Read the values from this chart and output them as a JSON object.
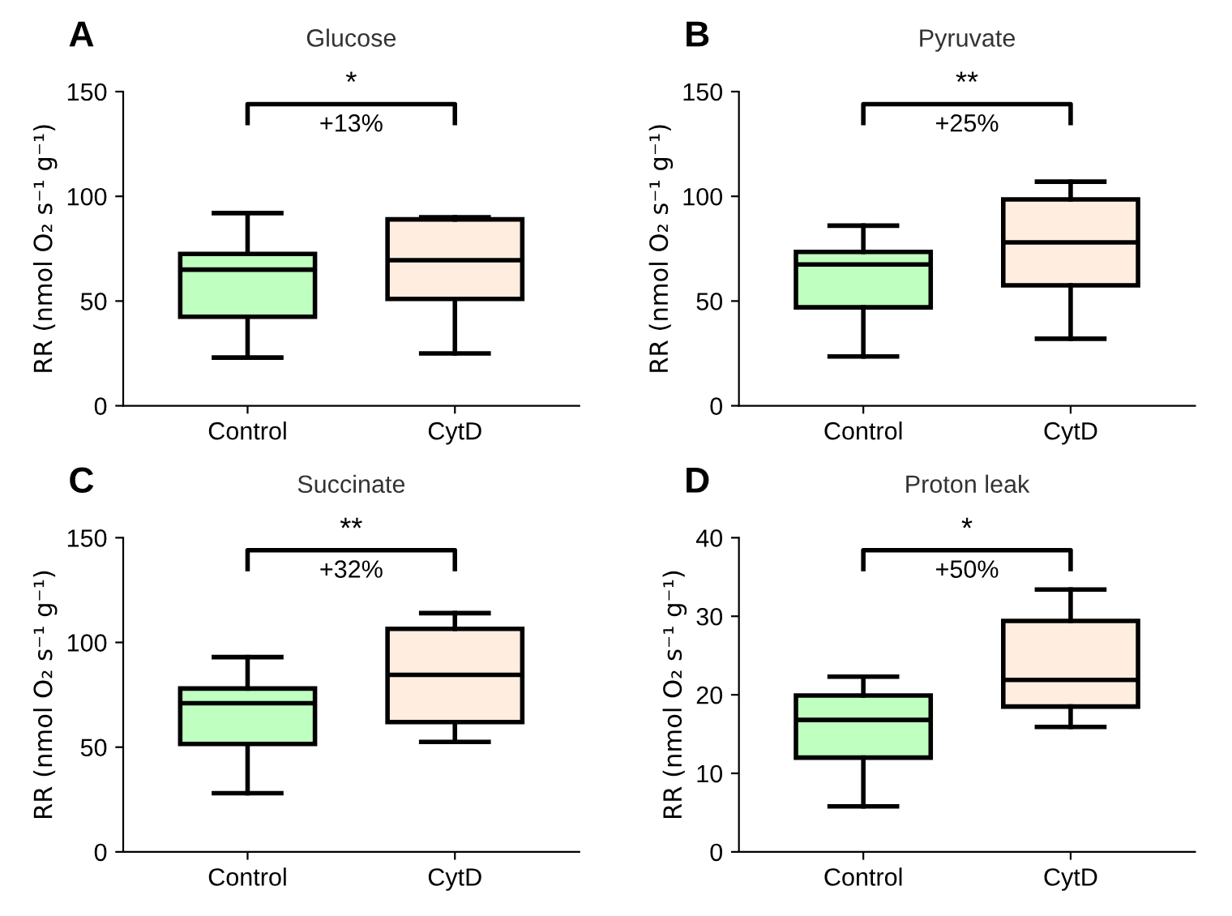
{
  "chart_data": [
    {
      "type": "box",
      "title": "Glucose",
      "ylabel": "RR (nmol O₂ s⁻¹ g⁻¹)",
      "categories": [
        "Control",
        "CytD"
      ],
      "colors": [
        "#bfffbf",
        "#ffeee0"
      ],
      "ylim": [
        0,
        150
      ],
      "yticks": [
        0,
        50,
        100,
        150
      ],
      "grid": false,
      "annotations": [
        "A",
        "*",
        "+13%"
      ],
      "boxes": [
        {
          "low": 23,
          "q1": 42.5,
          "median": 65,
          "q3": 72.5,
          "high": 92
        },
        {
          "low": 25,
          "q1": 51,
          "median": 69.5,
          "q3": 89,
          "high": 90
        }
      ]
    },
    {
      "type": "box",
      "title": "Pyruvate",
      "ylabel": "RR (nmol O₂ s⁻¹ g⁻¹)",
      "categories": [
        "Control",
        "CytD"
      ],
      "colors": [
        "#bfffbf",
        "#ffeee0"
      ],
      "ylim": [
        0,
        150
      ],
      "yticks": [
        0,
        50,
        100,
        150
      ],
      "grid": false,
      "annotations": [
        "B",
        "**",
        "+25%"
      ],
      "boxes": [
        {
          "low": 23.5,
          "q1": 47,
          "median": 67.5,
          "q3": 73.5,
          "high": 86
        },
        {
          "low": 32,
          "q1": 57.5,
          "median": 78,
          "q3": 98.5,
          "high": 107
        }
      ]
    },
    {
      "type": "box",
      "title": "Succinate",
      "ylabel": "RR (nmol O₂ s⁻¹ g⁻¹)",
      "categories": [
        "Control",
        "CytD"
      ],
      "colors": [
        "#bfffbf",
        "#ffeee0"
      ],
      "ylim": [
        0,
        150
      ],
      "yticks": [
        0,
        50,
        100,
        150
      ],
      "grid": false,
      "annotations": [
        "C",
        "**",
        "+32%"
      ],
      "boxes": [
        {
          "low": 28,
          "q1": 51.5,
          "median": 71,
          "q3": 78,
          "high": 93
        },
        {
          "low": 52.5,
          "q1": 62,
          "median": 84.5,
          "q3": 106.5,
          "high": 114
        }
      ]
    },
    {
      "type": "box",
      "title": "Proton leak",
      "ylabel": "RR (nmol O₂ s⁻¹ g⁻¹)",
      "categories": [
        "Control",
        "CytD"
      ],
      "colors": [
        "#bfffbf",
        "#ffeee0"
      ],
      "ylim": [
        0,
        40
      ],
      "yticks": [
        0,
        10,
        20,
        30,
        40
      ],
      "grid": false,
      "annotations": [
        "D",
        "*",
        "+50%"
      ],
      "boxes": [
        {
          "low": 5.8,
          "q1": 12,
          "median": 16.8,
          "q3": 19.9,
          "high": 22.3
        },
        {
          "low": 15.9,
          "q1": 18.5,
          "median": 21.9,
          "q3": 29.4,
          "high": 33.4
        }
      ]
    }
  ]
}
